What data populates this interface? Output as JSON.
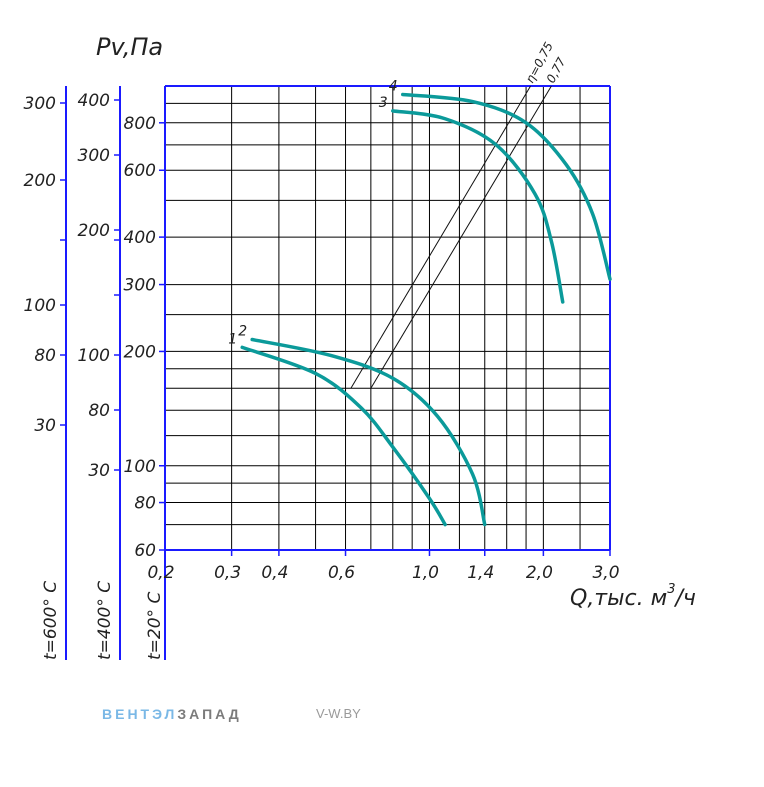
{
  "chart_data": {
    "type": "line",
    "ylabel": "Pv,Па",
    "xlabel": "Q,тыс. м³/ч",
    "xlabel_main": "Q,тыс. м",
    "xlabel_sup": "3",
    "xlabel_tail": "/ч",
    "x_ticks": [
      "0,2",
      "0,3",
      "0,4",
      "0,6",
      "1,0",
      "1,4",
      "2,0",
      "3,0"
    ],
    "y_axes": [
      {
        "name": "t=20° С",
        "ticks": [
          "60",
          "80",
          "100",
          "200",
          "300",
          "400",
          "600",
          "800"
        ]
      },
      {
        "name": "t=400° С",
        "ticks": [
          "30",
          "80",
          "100",
          "200",
          "300",
          "400"
        ]
      },
      {
        "name": "t=600° С",
        "ticks": [
          "30",
          "80",
          "100",
          "200",
          "300"
        ]
      }
    ],
    "series": [
      {
        "name": "1",
        "x": [
          0.32,
          0.5,
          0.66,
          0.8,
          1.0,
          1.1
        ],
        "y": [
          205,
          175,
          142,
          112,
          82,
          70
        ]
      },
      {
        "name": "2",
        "x": [
          0.34,
          0.55,
          0.8,
          1.05,
          1.3,
          1.4
        ],
        "y": [
          215,
          195,
          170,
          135,
          95,
          70
        ]
      },
      {
        "name": "3",
        "x": [
          0.8,
          1.1,
          1.5,
          1.9,
          2.1,
          2.25
        ],
        "y": [
          860,
          820,
          700,
          520,
          390,
          270
        ]
      },
      {
        "name": "4",
        "x": [
          0.85,
          1.3,
          1.8,
          2.3,
          2.7,
          3.0
        ],
        "y": [
          950,
          910,
          800,
          620,
          460,
          310
        ]
      }
    ],
    "efficiency_lines": [
      {
        "label": "η=0,75",
        "x": [
          0.62,
          1.85
        ],
        "y": [
          160,
          1000
        ]
      },
      {
        "label": "0,77",
        "x": [
          0.7,
          2.1
        ],
        "y": [
          160,
          1000
        ]
      }
    ]
  },
  "footer": {
    "brand_part1": "ВЕНТЭЛ",
    "brand_part2": "ЗАПАД",
    "site": "V-W.BY"
  },
  "colors": {
    "axis": "#1a1aff",
    "curve": "#0b9a9a",
    "brand_blue": "#7ab8e6"
  }
}
